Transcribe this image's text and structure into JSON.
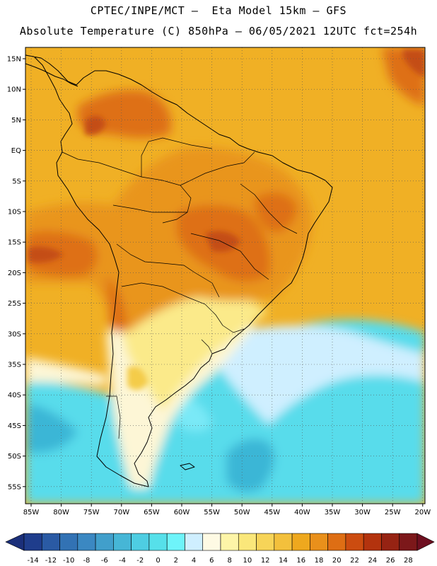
{
  "title_line1": "CPTEC/INPE/MCT –  Eta Model 15km – GFS",
  "title_line2": "Absolute Temperature (C) 850hPa – 06/05/2021 12UTC fct=254h",
  "lat_labels": [
    "15N",
    "10N",
    "5N",
    "EQ",
    "5S",
    "10S",
    "15S",
    "20S",
    "25S",
    "30S",
    "35S",
    "40S",
    "45S",
    "50S",
    "55S"
  ],
  "lon_labels": [
    "85W",
    "80W",
    "75W",
    "70W",
    "65W",
    "60W",
    "55W",
    "50W",
    "45W",
    "40W",
    "35W",
    "30W",
    "25W",
    "20W"
  ],
  "colorbar": {
    "labels": [
      "-14",
      "-12",
      "-10",
      "-8",
      "-6",
      "-4",
      "-2",
      "0",
      "2",
      "4",
      "6",
      "8",
      "10",
      "12",
      "14",
      "16",
      "18",
      "20",
      "22",
      "24",
      "26",
      "28"
    ],
    "colors": [
      "#1f3d8c",
      "#2a5aa4",
      "#3272b4",
      "#3b88c2",
      "#419fcb",
      "#46b6d6",
      "#4ecde2",
      "#56e0ea",
      "#6ef4fa",
      "#cfefff",
      "#fefae4",
      "#fdf5a8",
      "#fae77a",
      "#f7d458",
      "#f3c03c",
      "#eea81e",
      "#e9901b",
      "#de6e14",
      "#cc4c10",
      "#b3330e",
      "#962313",
      "#7c181a"
    ],
    "left_arrow_color": "#1b2f7a",
    "right_arrow_color": "#6e0f20"
  },
  "palette": {
    "ocean_south": "#58dceb",
    "ocean_deep": "#3bb6d6",
    "ocean_mid": "#7ae9f7",
    "cool_pale": "#cfefff",
    "cream": "#fdf6d6",
    "pale_yellow": "#fbea8a",
    "yellow": "#f4cc4a",
    "warm": "#f0b025",
    "orange": "#e9951f",
    "hot": "#de7016",
    "very_hot": "#c44d12"
  }
}
